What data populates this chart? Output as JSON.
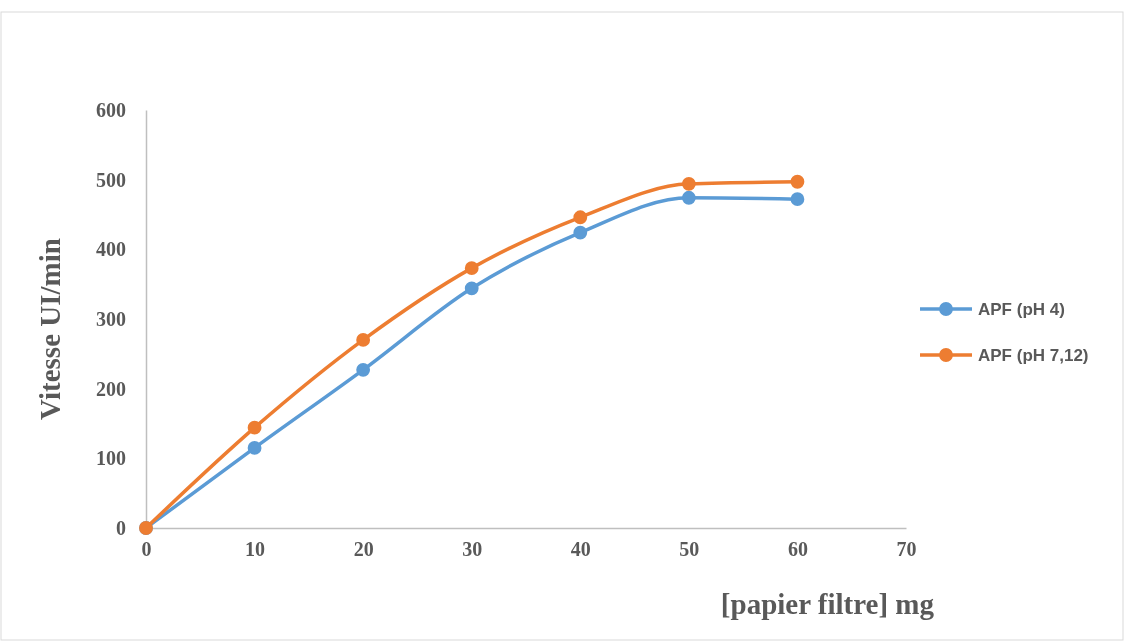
{
  "chart_data": {
    "type": "line",
    "xlabel": "[papier filtre] mg",
    "ylabel": "Vitesse UI/min",
    "x": [
      0,
      10,
      20,
      30,
      40,
      50,
      60
    ],
    "series": [
      {
        "name": "APF (pH 4)",
        "color": "#5b9bd5",
        "values": [
          0,
          115,
          227,
          344,
          424,
          474,
          472
        ]
      },
      {
        "name": "APF (pH 7,12)",
        "color": "#ed7d31",
        "values": [
          0,
          144,
          270,
          373,
          446,
          494,
          497
        ]
      }
    ],
    "xlim": [
      0,
      70
    ],
    "xticks": [
      0,
      10,
      20,
      30,
      40,
      50,
      60,
      70
    ],
    "ylim": [
      0,
      600
    ],
    "yticks": [
      0,
      100,
      200,
      300,
      400,
      500,
      600
    ],
    "grid": false,
    "legend": "right",
    "marker": "circle",
    "line_style": "solid"
  }
}
